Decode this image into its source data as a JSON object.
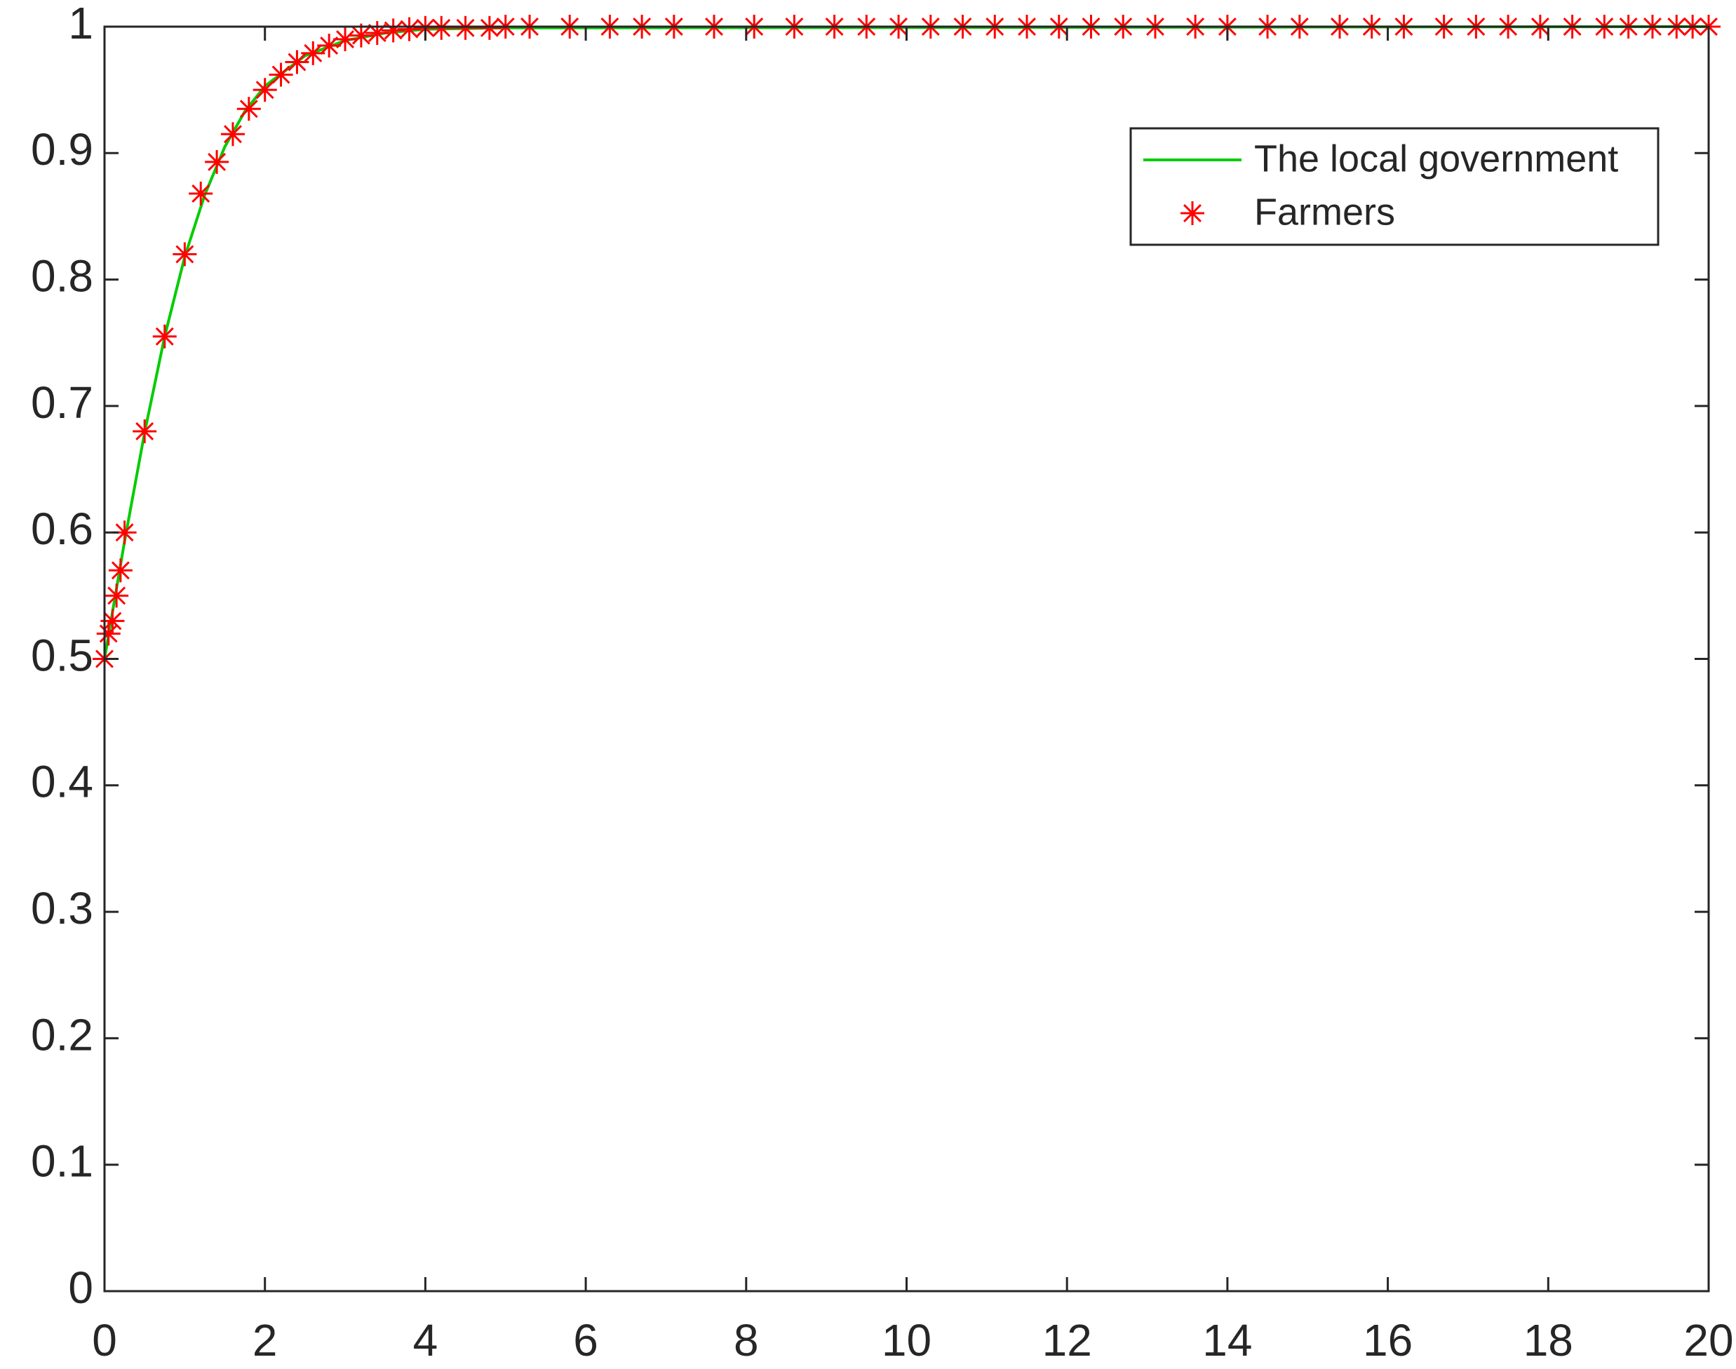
{
  "chart_data": {
    "type": "line",
    "xlim": [
      0,
      20
    ],
    "ylim": [
      0,
      1
    ],
    "xticks": [
      0,
      2,
      4,
      6,
      8,
      10,
      12,
      14,
      16,
      18,
      20
    ],
    "yticks": [
      0,
      0.1,
      0.2,
      0.3,
      0.4,
      0.5,
      0.6,
      0.7,
      0.8,
      0.9,
      1
    ],
    "legend": "upper right",
    "series": [
      {
        "name": "The local government",
        "color": "#00cc00",
        "marker": "none",
        "x": [
          0,
          0.25,
          0.5,
          0.75,
          1,
          1.25,
          1.5,
          1.75,
          2,
          2.5,
          3,
          3.5,
          4,
          5,
          20
        ],
        "values": [
          0.5,
          0.593,
          0.679,
          0.755,
          0.818,
          0.867,
          0.905,
          0.933,
          0.953,
          0.977,
          0.989,
          0.995,
          0.998,
          0.999,
          1
        ]
      },
      {
        "name": "Farmers",
        "color": "#ff0000",
        "marker": "star",
        "x": [
          0,
          0.05,
          0.1,
          0.15,
          0.2,
          0.25,
          0.5,
          0.75,
          1,
          1.2,
          1.4,
          1.6,
          1.8,
          2,
          2.2,
          2.4,
          2.6,
          2.8,
          3,
          3.2,
          3.4,
          3.6,
          3.8,
          4,
          4.2,
          4.5,
          4.8,
          5,
          5.3,
          5.8,
          6.3,
          6.7,
          7.1,
          7.6,
          8.1,
          8.6,
          9.1,
          9.5,
          9.9,
          10.3,
          10.7,
          11.1,
          11.5,
          11.9,
          12.3,
          12.7,
          13.1,
          13.6,
          14,
          14.5,
          14.9,
          15.4,
          15.8,
          16.2,
          16.7,
          17.1,
          17.5,
          17.9,
          18.3,
          18.7,
          19,
          19.3,
          19.6,
          19.8,
          20
        ],
        "values": [
          0.5,
          0.52,
          0.53,
          0.55,
          0.57,
          0.6,
          0.68,
          0.755,
          0.82,
          0.868,
          0.893,
          0.915,
          0.935,
          0.95,
          0.962,
          0.972,
          0.979,
          0.985,
          0.99,
          0.993,
          0.995,
          0.997,
          0.998,
          0.999,
          0.999,
          0.999,
          0.999,
          1,
          1,
          1,
          1,
          1,
          1,
          1,
          1,
          1,
          1,
          1,
          1,
          1,
          1,
          1,
          1,
          1,
          1,
          1,
          1,
          1,
          1,
          1,
          1,
          1,
          1,
          1,
          1,
          1,
          1,
          1,
          1,
          1,
          1,
          1,
          1,
          1,
          1
        ]
      }
    ]
  }
}
